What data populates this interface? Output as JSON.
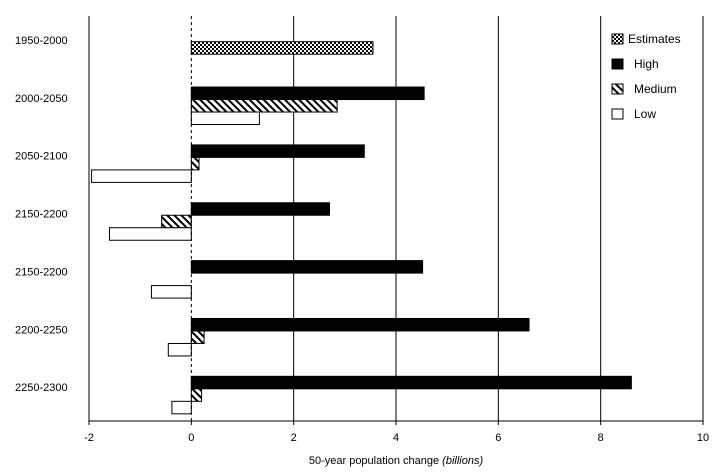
{
  "chart_data": {
    "type": "bar",
    "orientation": "horizontal",
    "title": "",
    "xlabel_main": "50-year population change ",
    "xlabel_unit": "(billions)",
    "xlim": [
      -2,
      10
    ],
    "xticks": [
      "-2",
      "0",
      "2",
      "4",
      "6",
      "8",
      "10"
    ],
    "grid": "vertical major gridlines",
    "legend_position": "top-right",
    "categories": [
      "1950-2000",
      "2000-2050",
      "2050-2100",
      "2150-2200",
      "2150-2200",
      "2200-2250",
      "2250-2300"
    ],
    "series": [
      {
        "name": "Estimates",
        "pattern": "checker",
        "values": [
          3.55,
          null,
          null,
          null,
          null,
          null,
          null
        ]
      },
      {
        "name": "High",
        "pattern": "solid",
        "values": [
          null,
          4.55,
          3.38,
          2.7,
          4.52,
          6.6,
          8.6
        ]
      },
      {
        "name": "Medium",
        "pattern": "hatch",
        "values": [
          null,
          2.85,
          0.15,
          -0.58,
          0.0,
          0.25,
          0.2
        ]
      },
      {
        "name": "Low",
        "pattern": "open",
        "values": [
          null,
          1.33,
          -1.95,
          -1.6,
          -0.78,
          -0.45,
          -0.38
        ]
      }
    ]
  },
  "colors": {
    "bar_fill": "#000000",
    "bar_outline": "#000000",
    "open_fill": "#ffffff",
    "grid": "#000000"
  }
}
